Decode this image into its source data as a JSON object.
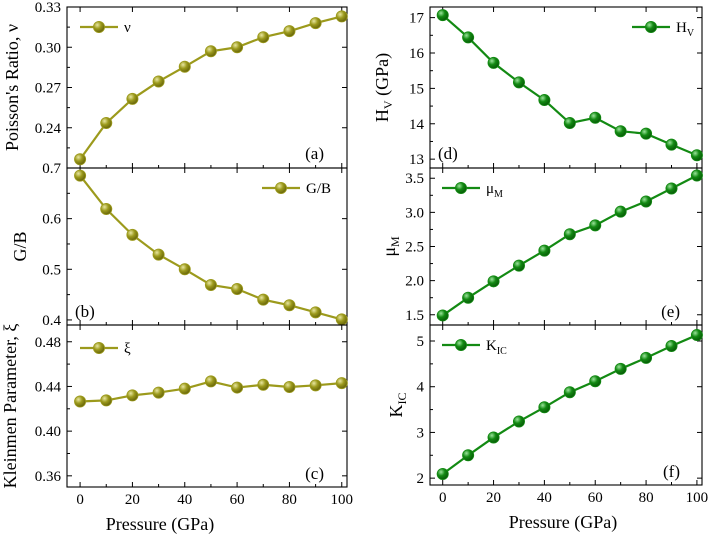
{
  "figure": {
    "x_axis_label": "Pressure (GPa)",
    "x_ticks": [
      "0",
      "20",
      "40",
      "60",
      "80",
      "100"
    ]
  },
  "colors": {
    "olive": "#9c9a1c",
    "olive_dark": "#5e5c08",
    "olive_light": "#e8e6a0",
    "green": "#138a13",
    "green_dark": "#055205",
    "green_light": "#9be39b"
  },
  "chart_data": [
    {
      "id": "a",
      "type": "line",
      "panel_label": "(a)",
      "ylabel": "Poisson's Ratio, ν",
      "legend": "ν",
      "color": "olive",
      "x": [
        0,
        10,
        20,
        30,
        40,
        50,
        60,
        70,
        80,
        90,
        100
      ],
      "values": [
        0.2165,
        0.2435,
        0.2615,
        0.2745,
        0.2855,
        0.297,
        0.3,
        0.3075,
        0.312,
        0.318,
        0.323
      ],
      "xlim": [
        -5,
        102
      ],
      "ylim": [
        0.21,
        0.33
      ],
      "yticks": [
        0.24,
        0.27,
        0.3,
        0.33
      ],
      "ytick_labels": [
        "0.24",
        "0.27",
        "0.30",
        "0.33"
      ]
    },
    {
      "id": "b",
      "type": "line",
      "panel_label": "(b)",
      "ylabel": "G/B",
      "legend": "G/B",
      "color": "olive",
      "x": [
        0,
        10,
        20,
        30,
        40,
        50,
        60,
        70,
        80,
        90,
        100
      ],
      "values": [
        0.685,
        0.619,
        0.568,
        0.529,
        0.5,
        0.469,
        0.461,
        0.44,
        0.429,
        0.415,
        0.401
      ],
      "xlim": [
        -5,
        102
      ],
      "ylim": [
        0.39,
        0.7
      ],
      "yticks": [
        0.4,
        0.5,
        0.6,
        0.7
      ],
      "ytick_labels": [
        "0.4",
        "0.5",
        "0.6",
        "0.7"
      ]
    },
    {
      "id": "c",
      "type": "line",
      "panel_label": "(c)",
      "ylabel": "Kleinmen Parameter, ξ",
      "legend": "ξ",
      "color": "olive",
      "x": [
        0,
        10,
        20,
        30,
        40,
        50,
        60,
        70,
        80,
        90,
        100
      ],
      "values": [
        0.4265,
        0.4275,
        0.432,
        0.4345,
        0.438,
        0.4445,
        0.439,
        0.4415,
        0.4395,
        0.441,
        0.443
      ],
      "xlim": [
        -5,
        102
      ],
      "ylim": [
        0.35,
        0.495
      ],
      "yticks": [
        0.36,
        0.4,
        0.44,
        0.48
      ],
      "ytick_labels": [
        "0.36",
        "0.40",
        "0.44",
        "0.48"
      ]
    },
    {
      "id": "d",
      "type": "line",
      "panel_label": "(d)",
      "ylabel": "H",
      "ylabel_sub": "V",
      "ylabel_suffix": " (GPa)",
      "legend": "H",
      "legend_sub": "V",
      "color": "green",
      "x": [
        0,
        10,
        20,
        30,
        40,
        50,
        60,
        70,
        80,
        90,
        100
      ],
      "values": [
        17.07,
        16.44,
        15.72,
        15.17,
        14.67,
        14.02,
        14.17,
        13.79,
        13.72,
        13.41,
        13.11
      ],
      "xlim": [
        -5,
        102
      ],
      "ylim": [
        12.75,
        17.3
      ],
      "yticks": [
        13,
        14,
        15,
        16,
        17
      ],
      "ytick_labels": [
        "13",
        "14",
        "15",
        "16",
        "17"
      ]
    },
    {
      "id": "e",
      "type": "line",
      "panel_label": "(e)",
      "ylabel": "μ",
      "ylabel_sub": "M",
      "legend": "μ",
      "legend_sub": "M",
      "color": "green",
      "x": [
        0,
        10,
        20,
        30,
        40,
        50,
        60,
        70,
        80,
        90,
        100
      ],
      "values": [
        1.49,
        1.75,
        1.99,
        2.22,
        2.44,
        2.68,
        2.81,
        3.01,
        3.16,
        3.35,
        3.54
      ],
      "xlim": [
        -5,
        102
      ],
      "ylim": [
        1.35,
        3.65
      ],
      "yticks": [
        1.5,
        2.0,
        2.5,
        3.0,
        3.5
      ],
      "ytick_labels": [
        "1.5",
        "2.0",
        "2.5",
        "3.0",
        "3.5"
      ]
    },
    {
      "id": "f",
      "type": "line",
      "panel_label": "(f)",
      "ylabel": "K",
      "ylabel_sub": "IC",
      "legend": "K",
      "legend_sub": "IC",
      "color": "green",
      "x": [
        0,
        10,
        20,
        30,
        40,
        50,
        60,
        70,
        80,
        90,
        100
      ],
      "values": [
        2.09,
        2.5,
        2.89,
        3.24,
        3.55,
        3.88,
        4.12,
        4.39,
        4.63,
        4.89,
        5.13
      ],
      "xlim": [
        -5,
        102
      ],
      "ylim": [
        1.85,
        5.35
      ],
      "yticks": [
        2,
        3,
        4,
        5
      ],
      "ytick_labels": [
        "2",
        "3",
        "4",
        "5"
      ]
    }
  ]
}
